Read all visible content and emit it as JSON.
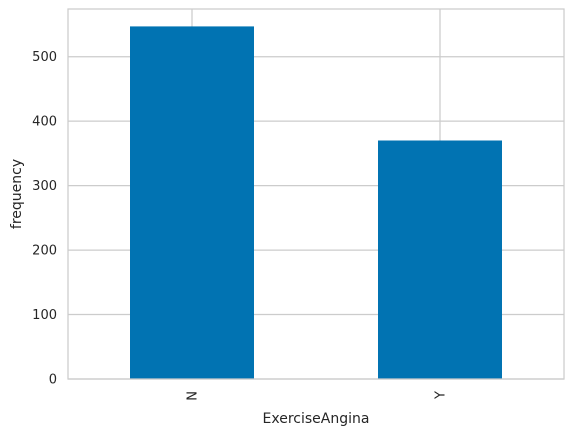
{
  "chart_data": {
    "type": "bar",
    "title": "",
    "xlabel": "ExerciseAngina",
    "ylabel": "frequency",
    "categories": [
      "N",
      "Y"
    ],
    "values": [
      547,
      370
    ],
    "ylim": [
      0,
      574
    ],
    "yticks": [
      0,
      100,
      200,
      300,
      400,
      500
    ],
    "grid": true,
    "legend": "none",
    "bar_color": "#0173b2",
    "grid_color": "#cccccc",
    "axes_edge_color": "#cccccc",
    "background": "#ffffff"
  }
}
